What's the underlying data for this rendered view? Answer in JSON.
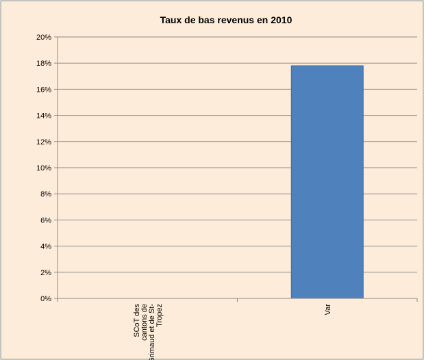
{
  "chart_data": {
    "type": "bar",
    "title": "Taux de bas revenus en 2010",
    "categories": [
      "SCoT des cantons de Grimaud et de St-Tropez",
      "Var"
    ],
    "category_label_lines": [
      [
        "SCoT des",
        "cantons de",
        "Grimaud et de St-",
        "Tropez"
      ],
      [
        "Var"
      ]
    ],
    "values": [
      0.0,
      17.8
    ],
    "ylim": [
      0,
      20
    ],
    "yticks": [
      0,
      2,
      4,
      6,
      8,
      10,
      12,
      14,
      16,
      18,
      20
    ],
    "ytick_labels": [
      "0%",
      "2%",
      "4%",
      "6%",
      "8%",
      "10%",
      "12%",
      "14%",
      "16%",
      "18%",
      "20%"
    ],
    "grid": true,
    "legend": false,
    "colors": {
      "bar": "#4f81bd",
      "bar_edge": "#3a6aa3",
      "background": "#fcecd9",
      "border": "#8c8c8c",
      "grid": "#8c8c8c",
      "text": "#000000"
    }
  }
}
